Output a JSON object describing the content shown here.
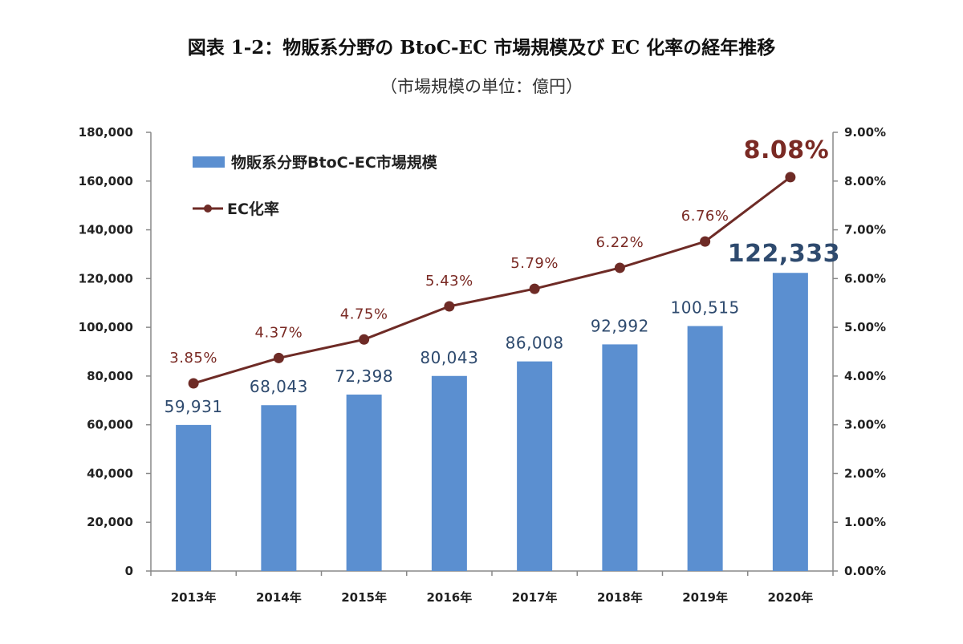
{
  "header": {
    "title": "図表 1-2：物販系分野の BtoC-EC 市場規模及び EC 化率の経年推移",
    "subtitle": "（市場規模の単位：億円）"
  },
  "colors": {
    "bar": "#5b8fd0",
    "line": "#6e2b26",
    "bar_label": "#2e4a6e",
    "rate_label": "#7a2a24"
  },
  "chart_data": {
    "type": "bar",
    "title": "図表 1-2：物販系分野の BtoC-EC 市場規模及び EC 化率の経年推移",
    "subtitle": "（市場規模の単位：億円）",
    "categories": [
      "2013年",
      "2014年",
      "2015年",
      "2016年",
      "2017年",
      "2018年",
      "2019年",
      "2020年"
    ],
    "series": [
      {
        "name": "物販系分野BtoC-EC市場規模",
        "kind": "bar",
        "axis": "left",
        "values": [
          59931,
          68043,
          72398,
          80043,
          86008,
          92992,
          100515,
          122333
        ],
        "labels": [
          "59,931",
          "68,043",
          "72,398",
          "80,043",
          "86,008",
          "92,992",
          "100,515",
          "122,333"
        ]
      },
      {
        "name": "EC化率",
        "kind": "line",
        "axis": "right",
        "values": [
          3.85,
          4.37,
          4.75,
          5.43,
          5.79,
          6.22,
          6.76,
          8.08
        ],
        "labels": [
          "3.85%",
          "4.37%",
          "4.75%",
          "5.43%",
          "5.79%",
          "6.22%",
          "6.76%",
          "8.08%"
        ]
      }
    ],
    "y_left": {
      "ylim": [
        0,
        180000
      ],
      "ticks": [
        0,
        20000,
        40000,
        60000,
        80000,
        100000,
        120000,
        140000,
        160000,
        180000
      ],
      "tick_labels": [
        "0",
        "20,000",
        "40,000",
        "60,000",
        "80,000",
        "100,000",
        "120,000",
        "140,000",
        "160,000",
        "180,000"
      ]
    },
    "y_right": {
      "ylim": [
        0,
        9
      ],
      "ticks": [
        0,
        1,
        2,
        3,
        4,
        5,
        6,
        7,
        8,
        9
      ],
      "tick_labels": [
        "0.00%",
        "1.00%",
        "2.00%",
        "3.00%",
        "4.00%",
        "5.00%",
        "6.00%",
        "7.00%",
        "8.00%",
        "9.00%"
      ]
    },
    "legend": {
      "position": "top-left",
      "items": [
        "物販系分野BtoC-EC市場規模",
        "EC化率"
      ]
    },
    "grid": false
  }
}
